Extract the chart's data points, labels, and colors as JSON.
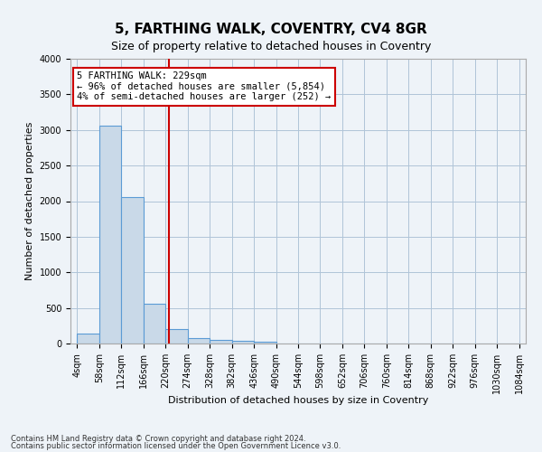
{
  "title": "5, FARTHING WALK, COVENTRY, CV4 8GR",
  "subtitle": "Size of property relative to detached houses in Coventry",
  "xlabel": "Distribution of detached houses by size in Coventry",
  "ylabel": "Number of detached properties",
  "bar_color": "#c9d9e8",
  "bar_edge_color": "#5b9bd5",
  "property_line_x": 229,
  "annotation_line1": "5 FARTHING WALK: 229sqm",
  "annotation_line2": "← 96% of detached houses are smaller (5,854)",
  "annotation_line3": "4% of semi-detached houses are larger (252) →",
  "footer1": "Contains HM Land Registry data © Crown copyright and database right 2024.",
  "footer2": "Contains public sector information licensed under the Open Government Licence v3.0.",
  "bin_edges": [
    4,
    58,
    112,
    166,
    220,
    274,
    328,
    382,
    436,
    490,
    544,
    598,
    652,
    706,
    760,
    814,
    868,
    922,
    976,
    1030,
    1084
  ],
  "bin_labels": [
    "4sqm",
    "58sqm",
    "112sqm",
    "166sqm",
    "220sqm",
    "274sqm",
    "328sqm",
    "382sqm",
    "436sqm",
    "490sqm",
    "544sqm",
    "598sqm",
    "652sqm",
    "706sqm",
    "760sqm",
    "814sqm",
    "868sqm",
    "922sqm",
    "976sqm",
    "1030sqm",
    "1084sqm"
  ],
  "counts": [
    140,
    3060,
    2060,
    560,
    200,
    80,
    55,
    40,
    20,
    0,
    0,
    0,
    0,
    0,
    0,
    0,
    0,
    0,
    0,
    0
  ],
  "ylim": [
    0,
    4000
  ],
  "yticks": [
    0,
    500,
    1000,
    1500,
    2000,
    2500,
    3000,
    3500,
    4000
  ],
  "background_color": "#eef3f8",
  "plot_bg_color": "#eef3f8",
  "grid_color": "#b0c4d8",
  "red_line_color": "#cc0000",
  "annotation_box_color": "#ffffff",
  "annotation_box_edge": "#cc0000",
  "title_fontsize": 11,
  "subtitle_fontsize": 9,
  "axis_label_fontsize": 8,
  "tick_fontsize": 7,
  "footer_fontsize": 6,
  "annotation_fontsize": 7.5
}
